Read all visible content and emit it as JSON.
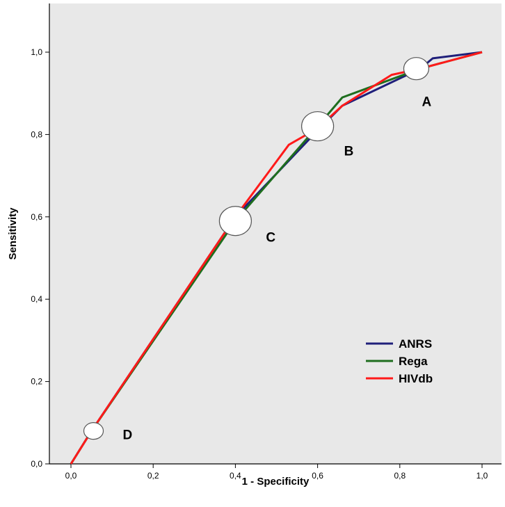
{
  "chart_data": {
    "type": "line",
    "title": "",
    "xlabel": "1 - Specificity",
    "ylabel": "Sensitivity",
    "xlim": [
      -0.05,
      1.05
    ],
    "ylim": [
      0.0,
      1.1
    ],
    "x_ticks": [
      "0,0",
      "0,2",
      "0,4",
      "0,6",
      "0,8",
      "1,0"
    ],
    "y_ticks": [
      "0,0",
      "0,2",
      "0,4",
      "0,6",
      "0,8",
      "1,0"
    ],
    "grid": false,
    "legend_position": "lower-right",
    "colors": {
      "plot_background": "#e8e8e8",
      "ANRS": "#1f1f7a",
      "Rega": "#1e6e1e",
      "HIVdb": "#ff1a1a"
    },
    "series": [
      {
        "name": "ANRS",
        "color_key": "ANRS",
        "points": [
          [
            0.0,
            0.0
          ],
          [
            0.05,
            0.08
          ],
          [
            0.4,
            0.6
          ],
          [
            0.6,
            0.81
          ],
          [
            0.66,
            0.87
          ],
          [
            0.85,
            0.96
          ],
          [
            0.88,
            0.985
          ],
          [
            1.0,
            1.0
          ]
        ]
      },
      {
        "name": "Rega",
        "color_key": "Rega",
        "points": [
          [
            0.0,
            0.0
          ],
          [
            0.05,
            0.08
          ],
          [
            0.4,
            0.59
          ],
          [
            0.6,
            0.82
          ],
          [
            0.66,
            0.89
          ],
          [
            0.85,
            0.96
          ],
          [
            1.0,
            1.0
          ]
        ]
      },
      {
        "name": "HIVdb",
        "color_key": "HIVdb",
        "points": [
          [
            0.0,
            0.0
          ],
          [
            0.05,
            0.08
          ],
          [
            0.4,
            0.6
          ],
          [
            0.53,
            0.775
          ],
          [
            0.6,
            0.815
          ],
          [
            0.66,
            0.87
          ],
          [
            0.78,
            0.945
          ],
          [
            0.85,
            0.96
          ],
          [
            1.0,
            1.0
          ]
        ]
      }
    ],
    "legend": [
      "ANRS",
      "Rega",
      "HIVdb"
    ],
    "annotations": [
      {
        "label": "A",
        "x": 0.84,
        "y": 0.96
      },
      {
        "label": "B",
        "x": 0.6,
        "y": 0.82
      },
      {
        "label": "C",
        "x": 0.4,
        "y": 0.59
      },
      {
        "label": "D",
        "x": 0.055,
        "y": 0.08
      }
    ]
  }
}
